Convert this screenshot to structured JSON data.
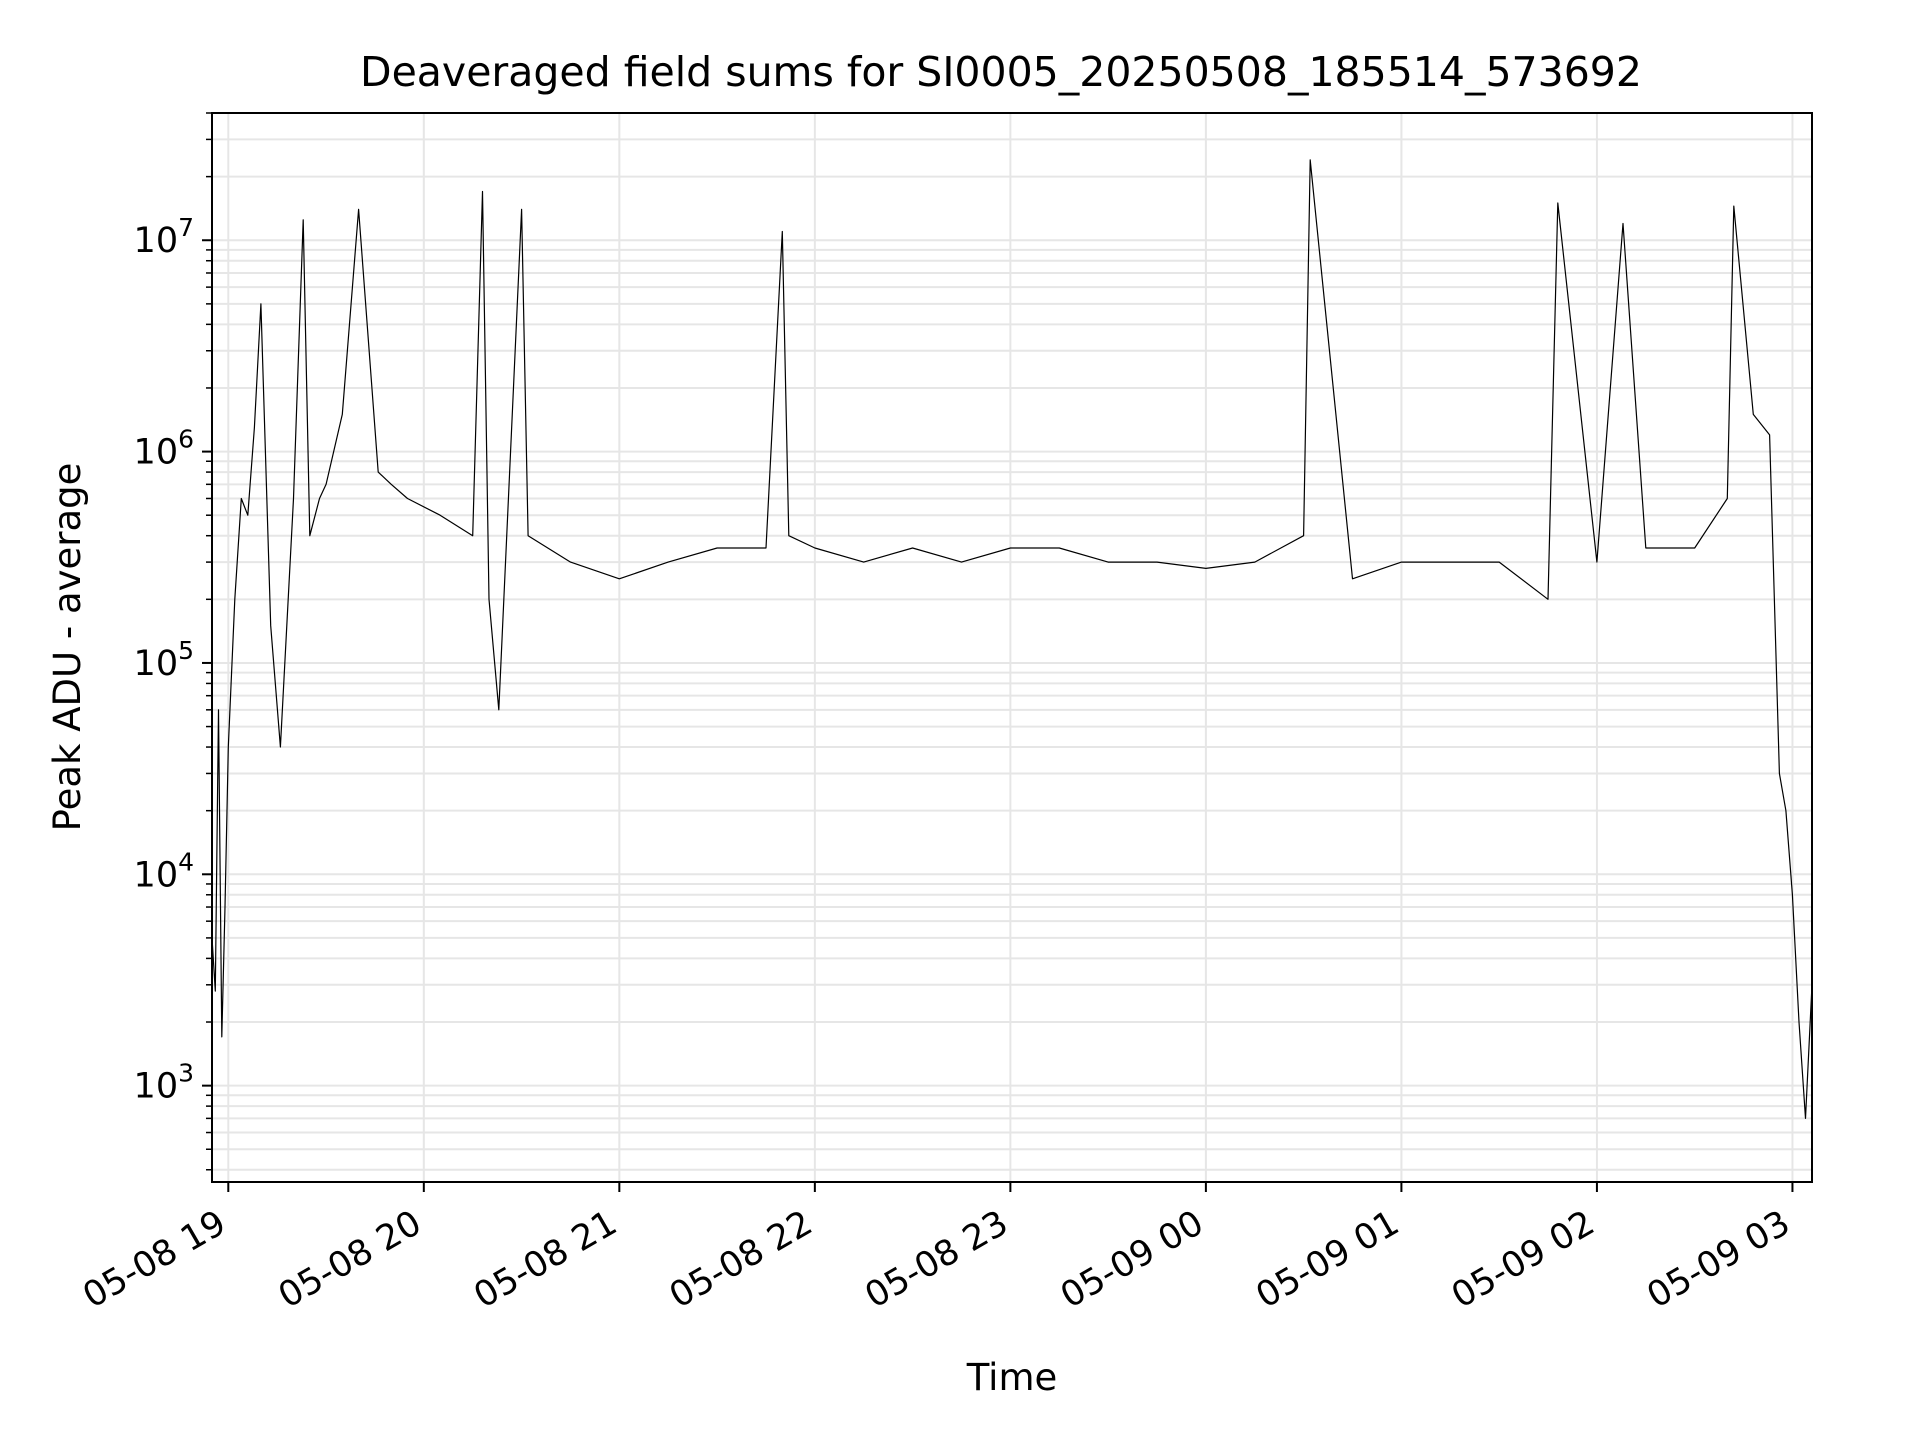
{
  "chart_data": {
    "type": "line",
    "title": "Deaveraged field sums for SI0005_20250508_185514_573692",
    "xlabel": "Time",
    "ylabel": "Peak ADU - average",
    "x_ticks": [
      "05-08 19",
      "05-08 20",
      "05-08 21",
      "05-08 22",
      "05-08 23",
      "05-09 00",
      "05-09 01",
      "05-09 02",
      "05-09 03"
    ],
    "y_ticks": [
      {
        "base": "10",
        "exp": "3",
        "value": 1000
      },
      {
        "base": "10",
        "exp": "4",
        "value": 10000
      },
      {
        "base": "10",
        "exp": "5",
        "value": 100000
      },
      {
        "base": "10",
        "exp": "6",
        "value": 1000000
      },
      {
        "base": "10",
        "exp": "7",
        "value": 10000000
      }
    ],
    "y_scale": "log",
    "xlim": [
      "2025-05-08 18:55",
      "2025-05-09 03:06"
    ],
    "ylim": [
      350,
      40000000
    ],
    "grid": true,
    "line_color": "#000000",
    "series": [
      {
        "x": [
          "2025-05-08 18:55",
          "2025-05-08 18:56",
          "2025-05-08 18:57",
          "2025-05-08 18:58",
          "2025-05-08 18:59",
          "2025-05-08 19:00",
          "2025-05-08 19:02",
          "2025-05-08 19:04",
          "2025-05-08 19:06",
          "2025-05-08 19:08",
          "2025-05-08 19:10",
          "2025-05-08 19:13",
          "2025-05-08 19:16",
          "2025-05-08 19:20",
          "2025-05-08 19:23",
          "2025-05-08 19:25",
          "2025-05-08 19:28",
          "2025-05-08 19:30",
          "2025-05-08 19:35",
          "2025-05-08 19:40",
          "2025-05-08 19:46",
          "2025-05-08 19:50",
          "2025-05-08 19:55",
          "2025-05-08 20:05",
          "2025-05-08 20:15",
          "2025-05-08 20:18",
          "2025-05-08 20:20",
          "2025-05-08 20:23",
          "2025-05-08 20:30",
          "2025-05-08 20:32",
          "2025-05-08 20:45",
          "2025-05-08 21:00",
          "2025-05-08 21:15",
          "2025-05-08 21:30",
          "2025-05-08 21:45",
          "2025-05-08 21:50",
          "2025-05-08 21:52",
          "2025-05-08 22:00",
          "2025-05-08 22:15",
          "2025-05-08 22:30",
          "2025-05-08 22:45",
          "2025-05-08 23:00",
          "2025-05-08 23:15",
          "2025-05-08 23:30",
          "2025-05-08 23:45",
          "2025-05-09 00:00",
          "2025-05-09 00:15",
          "2025-05-09 00:30",
          "2025-05-09 00:32",
          "2025-05-09 00:45",
          "2025-05-09 01:00",
          "2025-05-09 01:15",
          "2025-05-09 01:30",
          "2025-05-09 01:45",
          "2025-05-09 01:48",
          "2025-05-09 02:00",
          "2025-05-09 02:08",
          "2025-05-09 02:15",
          "2025-05-09 02:30",
          "2025-05-09 02:40",
          "2025-05-09 02:42",
          "2025-05-09 02:48",
          "2025-05-09 02:53",
          "2025-05-09 02:56",
          "2025-05-09 02:58",
          "2025-05-09 03:00",
          "2025-05-09 03:02",
          "2025-05-09 03:04",
          "2025-05-09 03:06"
        ],
        "y": [
          5000,
          2800,
          60000,
          1700,
          7000,
          40000,
          200000,
          600000,
          500000,
          1300000,
          5000000,
          150000,
          40000,
          600000,
          12500000,
          400000,
          600000,
          700000,
          1500000,
          14000000,
          800000,
          700000,
          600000,
          500000,
          400000,
          17000000,
          200000,
          60000,
          14000000,
          400000,
          300000,
          250000,
          300000,
          350000,
          350000,
          11000000,
          400000,
          350000,
          300000,
          350000,
          300000,
          350000,
          350000,
          300000,
          300000,
          280000,
          300000,
          400000,
          24000000,
          250000,
          300000,
          300000,
          300000,
          200000,
          15000000,
          300000,
          12000000,
          350000,
          350000,
          600000,
          14500000,
          1500000,
          1200000,
          30000,
          20000,
          8000,
          2000,
          700,
          3000
        ]
      }
    ]
  }
}
